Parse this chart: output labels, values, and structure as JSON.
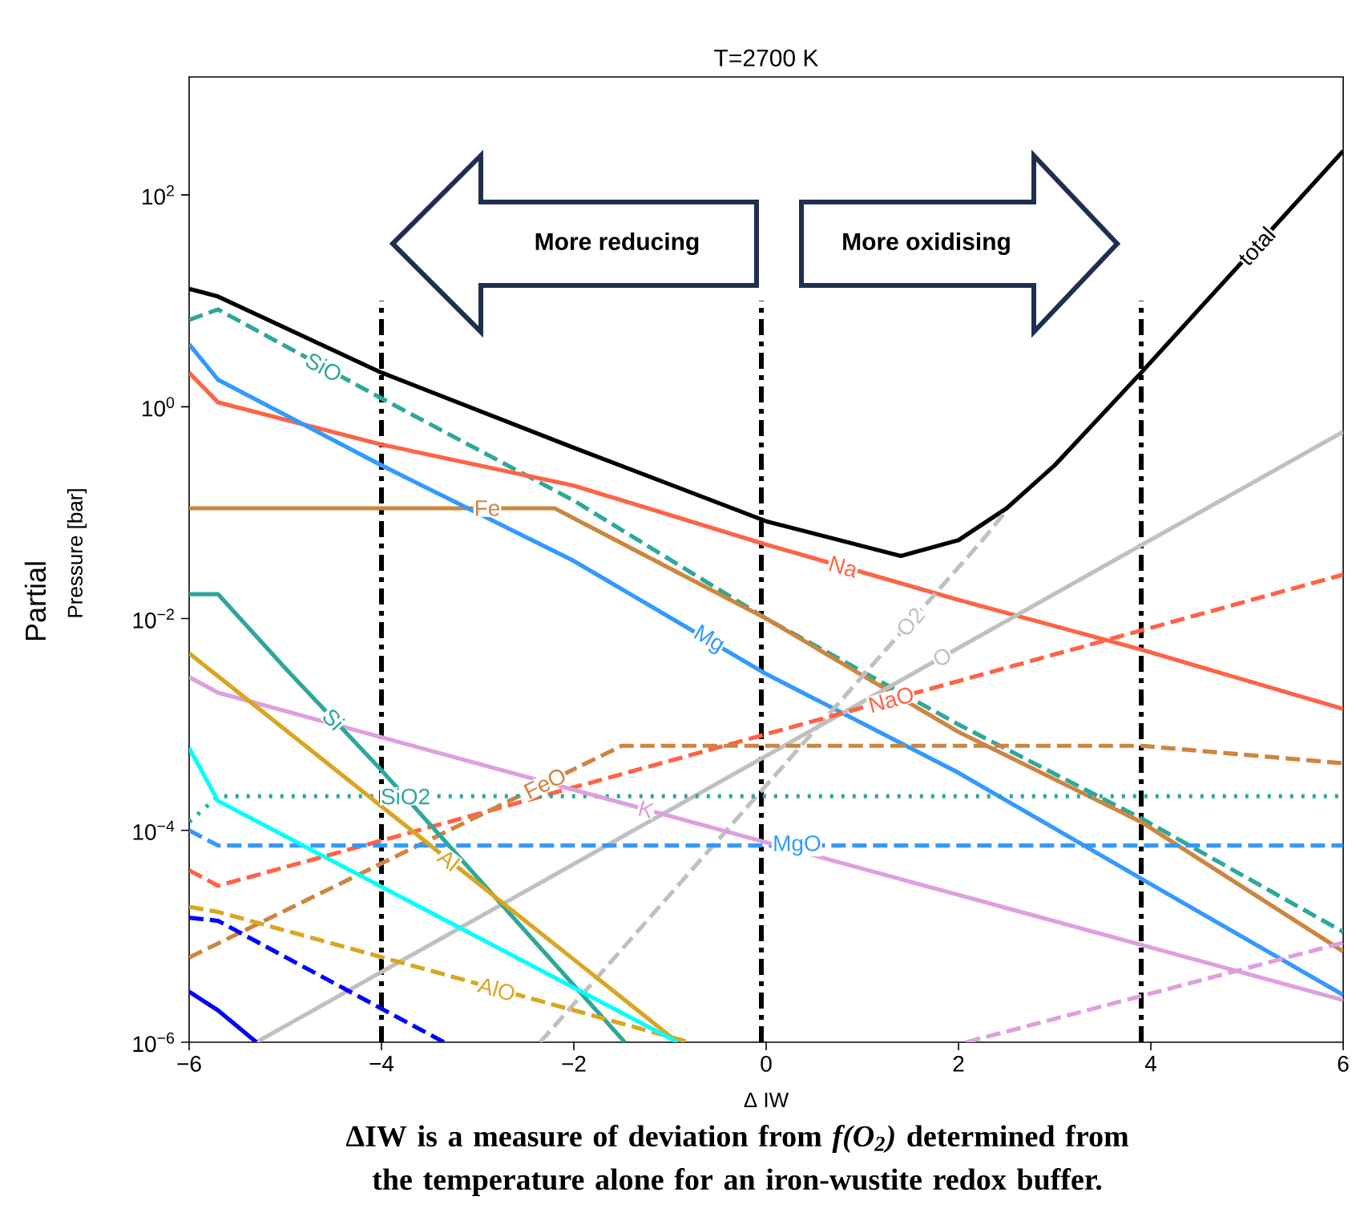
{
  "chart_data": {
    "type": "line",
    "title": "T=2700 K",
    "xlabel": "Δ IW",
    "ylabel": "Pressure [bar]",
    "log": "y",
    "xlim": [
      -6,
      6
    ],
    "ylim": [
      1e-06,
      1300
    ],
    "xticks": [
      {
        "value": -6,
        "label": "−6"
      },
      {
        "value": -4,
        "label": "−4"
      },
      {
        "value": -2,
        "label": "−2"
      },
      0,
      2,
      4,
      6
    ],
    "yticks": [
      {
        "value": 1e-06,
        "label": "10$^{−6}$"
      },
      {
        "value": 0.0001,
        "label": "10$^{−4}$"
      },
      {
        "value": 0.01,
        "label": "10$^{−2}$"
      },
      {
        "value": 1,
        "label": "10$^{0}$"
      },
      {
        "value": 100,
        "label": "10$^{2}$"
      }
    ],
    "annotations": [
      "Partial",
      "More reducing",
      "More oxidising",
      "ΔIW is a measure of deviation from *f(O$_{2}$)* determined from the temperature alone for an iron-wustite redox buffer."
    ],
    "ref_lines": [
      {
        "axis": "x",
        "value": -4,
        "color": "#000000",
        "line_style": "dashdot"
      },
      {
        "axis": "x",
        "value": -0.05,
        "color": "#000000",
        "line_style": "dashdot"
      },
      {
        "axis": "x",
        "value": 3.9,
        "color": "#000000",
        "line_style": "dashdot"
      }
    ],
    "series": [
      {
        "name": "total",
        "color": "#000000",
        "line_style": "solid",
        "x": [
          -6,
          -5.7,
          -4,
          -2,
          0,
          1.4,
          2,
          2.5,
          3,
          3.9,
          6
        ],
        "values": [
          13,
          11,
          2.1,
          0.41,
          0.083,
          0.039,
          0.055,
          0.11,
          0.28,
          2.1,
          260
        ]
      },
      {
        "name": "SiO",
        "color": "#2ca89a",
        "line_style": "dashed",
        "x": [
          -6,
          -5.7,
          -4,
          -2,
          0,
          2,
          3.9,
          6
        ],
        "values": [
          6.6,
          8.3,
          1.2,
          0.13,
          0.01,
          0.001,
          0.00013,
          1.1e-05
        ]
      },
      {
        "name": "Fe",
        "color": "#cd853f",
        "line_style": "solid",
        "x": [
          -6,
          -2.2,
          0,
          2,
          3.9,
          6
        ],
        "values": [
          0.11,
          0.11,
          0.01,
          0.00085,
          0.00012,
          7.2e-06
        ]
      },
      {
        "name": "Na",
        "color": "#ff6347",
        "line_style": "solid",
        "x": [
          -6,
          -5.7,
          -4,
          -2,
          0,
          2,
          3.9,
          6
        ],
        "values": [
          2.1,
          1.1,
          0.44,
          0.18,
          0.05,
          0.015,
          0.0051,
          0.0014
        ]
      },
      {
        "name": "Mg",
        "color": "#3399ff",
        "line_style": "solid",
        "x": [
          -6,
          -5.7,
          -4,
          -2,
          0,
          2,
          3.9,
          6
        ],
        "values": [
          3.9,
          1.8,
          0.28,
          0.035,
          0.003,
          0.00035,
          3.5e-05,
          2.8e-06
        ]
      },
      {
        "name": "O2",
        "color": "#c0c0c0",
        "line_style": "dashed",
        "x": [
          -2.35,
          0.15,
          2.25,
          2.5
        ],
        "values": [
          1e-06,
          0.00038,
          0.055,
          0.105
        ]
      },
      {
        "name": "O",
        "color": "#c0c0c0",
        "line_style": "solid",
        "x": [
          -5.3,
          6
        ],
        "values": [
          1e-06,
          0.58
        ]
      },
      {
        "name": "NaO",
        "color": "#ff6347",
        "line_style": "dashed",
        "x": [
          -6,
          -5.7,
          6
        ],
        "values": [
          4.2e-05,
          3e-05,
          0.026
        ]
      },
      {
        "name": "FeO",
        "color": "#cd853f",
        "line_style": "dashed",
        "x": [
          -6,
          -1.5,
          3.9,
          6
        ],
        "values": [
          6.3e-06,
          0.00063,
          0.00063,
          0.00043
        ]
      },
      {
        "name": "SiO2",
        "color": "#2ca89a",
        "line_style": "dotted",
        "x": [
          -6,
          -5.7,
          6
        ],
        "values": [
          0.00012,
          0.00021,
          0.00021
        ]
      },
      {
        "name": "MgO",
        "color": "#3399ff",
        "line_style": "dashed",
        "x": [
          -6,
          -5.7,
          6
        ],
        "values": [
          0.0001,
          7.2e-05,
          7.2e-05
        ]
      },
      {
        "name": "K",
        "color": "#dda0dd",
        "line_style": "solid",
        "x": [
          -6,
          -5.7,
          6
        ],
        "values": [
          0.0028,
          0.002,
          2.5e-06
        ]
      },
      {
        "name": "Si",
        "color": "#2ca89a",
        "line_style": "solid",
        "x": [
          -6,
          -5.7,
          -5.0,
          -4,
          -1.47
        ],
        "values": [
          0.017,
          0.017,
          0.0034,
          0.00037,
          1e-06
        ]
      },
      {
        "name": "Al",
        "color": "#daa520",
        "line_style": "solid",
        "x": [
          -6,
          -0.92
        ],
        "values": [
          0.0047,
          1e-06
        ]
      },
      {
        "name": "AlO",
        "color": "#daa520",
        "line_style": "dashed",
        "x": [
          -6,
          -5.7,
          -0.8
        ],
        "values": [
          1.9e-05,
          1.7e-05,
          1e-06
        ]
      },
      {
        "color": "#00ffff",
        "line_style": "solid",
        "x": [
          -6,
          -5.7,
          -0.92
        ],
        "values": [
          0.0006,
          0.00019,
          1e-06
        ]
      },
      {
        "color": "#0000ff",
        "line_style": "solid",
        "x": [
          -6,
          -5.7,
          -5.3
        ],
        "values": [
          3e-06,
          2e-06,
          1e-06
        ]
      },
      {
        "color": "#0000ff",
        "line_style": "dashed",
        "x": [
          -6,
          -5.7,
          -3.35
        ],
        "values": [
          1.5e-05,
          1.4e-05,
          1e-06
        ]
      },
      {
        "color": "#dda0dd",
        "line_style": "dashed",
        "x": [
          2.08,
          6
        ],
        "values": [
          1e-06,
          8.7e-06
        ]
      }
    ]
  }
}
